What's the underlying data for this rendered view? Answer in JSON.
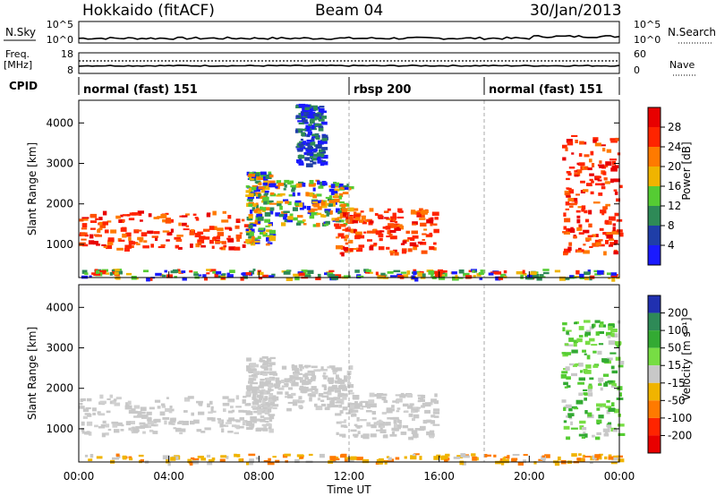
{
  "header": {
    "station": "Hokkaido (fitACF)",
    "beam": "Beam 04",
    "date": "30/Jan/2013"
  },
  "top_panels": {
    "nsky_label": "N.Sky",
    "nsky_ticks": [
      "10^5",
      "10^0"
    ],
    "nsearch_label": "N.Search",
    "nsearch_ticks": [
      "10^5",
      "10^0"
    ],
    "freq_label_line1": "Freq.",
    "freq_label_line2": "[MHz]",
    "freq_ticks": [
      "18",
      "8"
    ],
    "nave_label": "Nave",
    "nave_ticks": [
      "60",
      "0"
    ],
    "cpid_label": "CPID",
    "cpid_segments": [
      {
        "label": "normal (fast) 151",
        "start_hour": 0
      },
      {
        "label": "rbsp 200",
        "start_hour": 12
      },
      {
        "label": "normal (fast) 151",
        "start_hour": 18
      }
    ],
    "cpid_boundaries_hours": [
      12,
      18
    ]
  },
  "chart_data": [
    {
      "type": "heatmap",
      "panel": "power",
      "xlabel": "",
      "ylabel": "Slant Range [km]",
      "xlim": [
        0,
        24
      ],
      "ylim": [
        180,
        4560
      ],
      "yticks": [
        "1000",
        "2000",
        "3000",
        "4000"
      ],
      "ytick_values": [
        1000,
        2000,
        3000,
        4000
      ],
      "colorbar_label": "Power [dB]",
      "colorbar_ticks": [
        "4",
        "8",
        "12",
        "16",
        "20",
        "24",
        "28"
      ],
      "colorbar_colors": [
        "#1a1aff",
        "#1f3ea8",
        "#2e8a57",
        "#55cc33",
        "#f0b400",
        "#ff7a00",
        "#ff2400",
        "#e80000"
      ],
      "features": [
        {
          "t0": 0.0,
          "t1": 7.5,
          "r0": 900,
          "r1": 1850,
          "level": "high"
        },
        {
          "t0": 7.4,
          "t1": 8.5,
          "r0": 1000,
          "r1": 2800,
          "level": "mid"
        },
        {
          "t0": 8.6,
          "t1": 12.0,
          "r0": 1500,
          "r1": 2600,
          "level": "mid"
        },
        {
          "t0": 9.6,
          "t1": 10.8,
          "r0": 3000,
          "r1": 4500,
          "level": "low"
        },
        {
          "t0": 11.3,
          "t1": 15.8,
          "r0": 800,
          "r1": 1900,
          "level": "high"
        },
        {
          "t0": 21.4,
          "t1": 24.0,
          "r0": 800,
          "r1": 3700,
          "level": "high"
        },
        {
          "t0": 0.0,
          "t1": 24.0,
          "r0": 180,
          "r1": 400,
          "level": "ground"
        }
      ]
    },
    {
      "type": "heatmap",
      "panel": "velocity",
      "xlabel": "Time UT",
      "ylabel": "Slant Range [km]",
      "xlim": [
        0,
        24
      ],
      "ylim": [
        180,
        4560
      ],
      "xticks": [
        "00:00",
        "04:00",
        "08:00",
        "12:00",
        "16:00",
        "20:00",
        "00:00"
      ],
      "xtick_hours": [
        0,
        4,
        8,
        12,
        16,
        20,
        24
      ],
      "yticks": [
        "1000",
        "2000",
        "3000",
        "4000"
      ],
      "ytick_values": [
        1000,
        2000,
        3000,
        4000
      ],
      "colorbar_label": "Velocity [m s⁻¹]",
      "colorbar_ticks": [
        "200",
        "100",
        "50",
        "15",
        "-15",
        "-50",
        "-100",
        "-200"
      ],
      "colorbar_colors": [
        "#2030b0",
        "#2e8a57",
        "#33aa33",
        "#77dd44",
        "#c8c8c8",
        "#f0b400",
        "#ff7a00",
        "#ff2400",
        "#e80000"
      ],
      "features": [
        {
          "t0": 0.0,
          "t1": 7.5,
          "r0": 900,
          "r1": 1850,
          "level": "ground"
        },
        {
          "t0": 7.4,
          "t1": 8.5,
          "r0": 1000,
          "r1": 2800,
          "level": "ground"
        },
        {
          "t0": 8.6,
          "t1": 12.0,
          "r0": 1500,
          "r1": 2600,
          "level": "ground"
        },
        {
          "t0": 11.3,
          "t1": 15.8,
          "r0": 800,
          "r1": 1900,
          "level": "ground"
        },
        {
          "t0": 21.4,
          "t1": 24.0,
          "r0": 800,
          "r1": 3700,
          "level": "positive"
        },
        {
          "t0": 0.0,
          "t1": 24.0,
          "r0": 180,
          "r1": 400,
          "level": "negative"
        }
      ]
    }
  ]
}
